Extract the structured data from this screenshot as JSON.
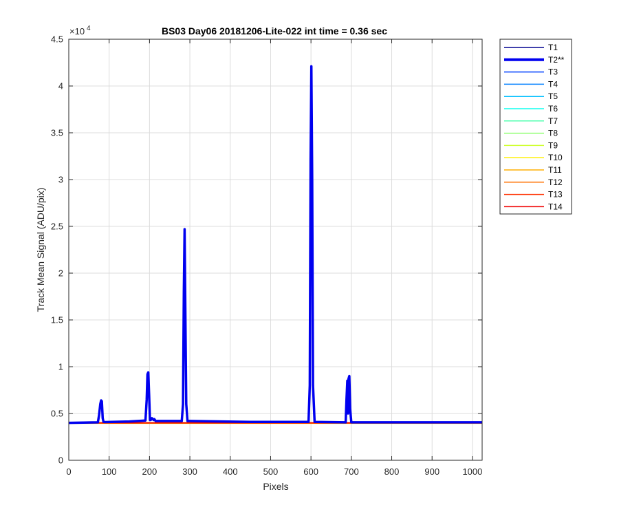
{
  "chart_data": {
    "type": "line",
    "title": "BS03 Day06 20181206-Lite-022 int time = 0.36 sec",
    "xlabel": "Pixels",
    "ylabel": "Track Mean Signal (ADU/pix)",
    "xlim": [
      0,
      1024
    ],
    "ylim": [
      0,
      45000
    ],
    "y_exponent_label": "×10",
    "y_exponent_power": "4",
    "xticks": [
      0,
      100,
      200,
      300,
      400,
      500,
      600,
      700,
      800,
      900,
      1000
    ],
    "xtick_labels": [
      "0",
      "100",
      "200",
      "300",
      "400",
      "500",
      "600",
      "700",
      "800",
      "900",
      "1000"
    ],
    "yticks": [
      0,
      5000,
      10000,
      15000,
      20000,
      25000,
      30000,
      35000,
      40000,
      45000
    ],
    "ytick_labels": [
      "0",
      "0.5",
      "1",
      "1.5",
      "2",
      "2.5",
      "3",
      "3.5",
      "4",
      "4.5"
    ],
    "grid": true,
    "legend_position": "outside-top-right",
    "series": [
      {
        "name": "T1",
        "color": "#00008f",
        "emphasis": false
      },
      {
        "name": "T2**",
        "color": "#0000ef",
        "emphasis": true,
        "x": [
          0,
          72,
          75,
          78,
          80,
          82,
          84,
          86,
          90,
          150,
          190,
          193,
          195,
          197,
          199,
          201,
          203,
          206,
          210,
          212,
          215,
          280,
          283,
          285,
          287,
          289,
          291,
          294,
          300,
          450,
          594,
          597,
          599,
          601,
          603,
          605,
          609,
          686,
          688,
          690,
          692,
          693,
          695,
          697,
          700,
          1024
        ],
        "y": [
          4000,
          4050,
          4800,
          6000,
          6400,
          6300,
          4500,
          4100,
          4080,
          4150,
          4250,
          6500,
          9200,
          9400,
          7000,
          4300,
          4300,
          4500,
          4300,
          4400,
          4200,
          4200,
          6000,
          18000,
          24700,
          15000,
          6000,
          4200,
          4200,
          4100,
          4100,
          8000,
          32000,
          42100,
          30000,
          8000,
          4100,
          4050,
          6500,
          8500,
          5000,
          8700,
          9000,
          5500,
          4050,
          4050
        ]
      },
      {
        "name": "T3",
        "color": "#0040ff",
        "emphasis": false
      },
      {
        "name": "T4",
        "color": "#0080ff",
        "emphasis": false
      },
      {
        "name": "T5",
        "color": "#00bfff",
        "emphasis": false
      },
      {
        "name": "T6",
        "color": "#10ffef",
        "emphasis": false
      },
      {
        "name": "T7",
        "color": "#50ffaf",
        "emphasis": false
      },
      {
        "name": "T8",
        "color": "#8fff70",
        "emphasis": false
      },
      {
        "name": "T9",
        "color": "#cfff30",
        "emphasis": false
      },
      {
        "name": "T10",
        "color": "#ffef00",
        "emphasis": false
      },
      {
        "name": "T11",
        "color": "#ffaf00",
        "emphasis": false
      },
      {
        "name": "T12",
        "color": "#ff7000",
        "emphasis": false
      },
      {
        "name": "T13",
        "color": "#ff3000",
        "emphasis": false
      },
      {
        "name": "T14",
        "color": "#ef0000",
        "emphasis": false
      }
    ],
    "baseline_values": [
      3950,
      3970,
      3990,
      4010,
      4030,
      4000,
      3980,
      3960,
      3940,
      3990,
      4020,
      3970,
      4000
    ]
  }
}
